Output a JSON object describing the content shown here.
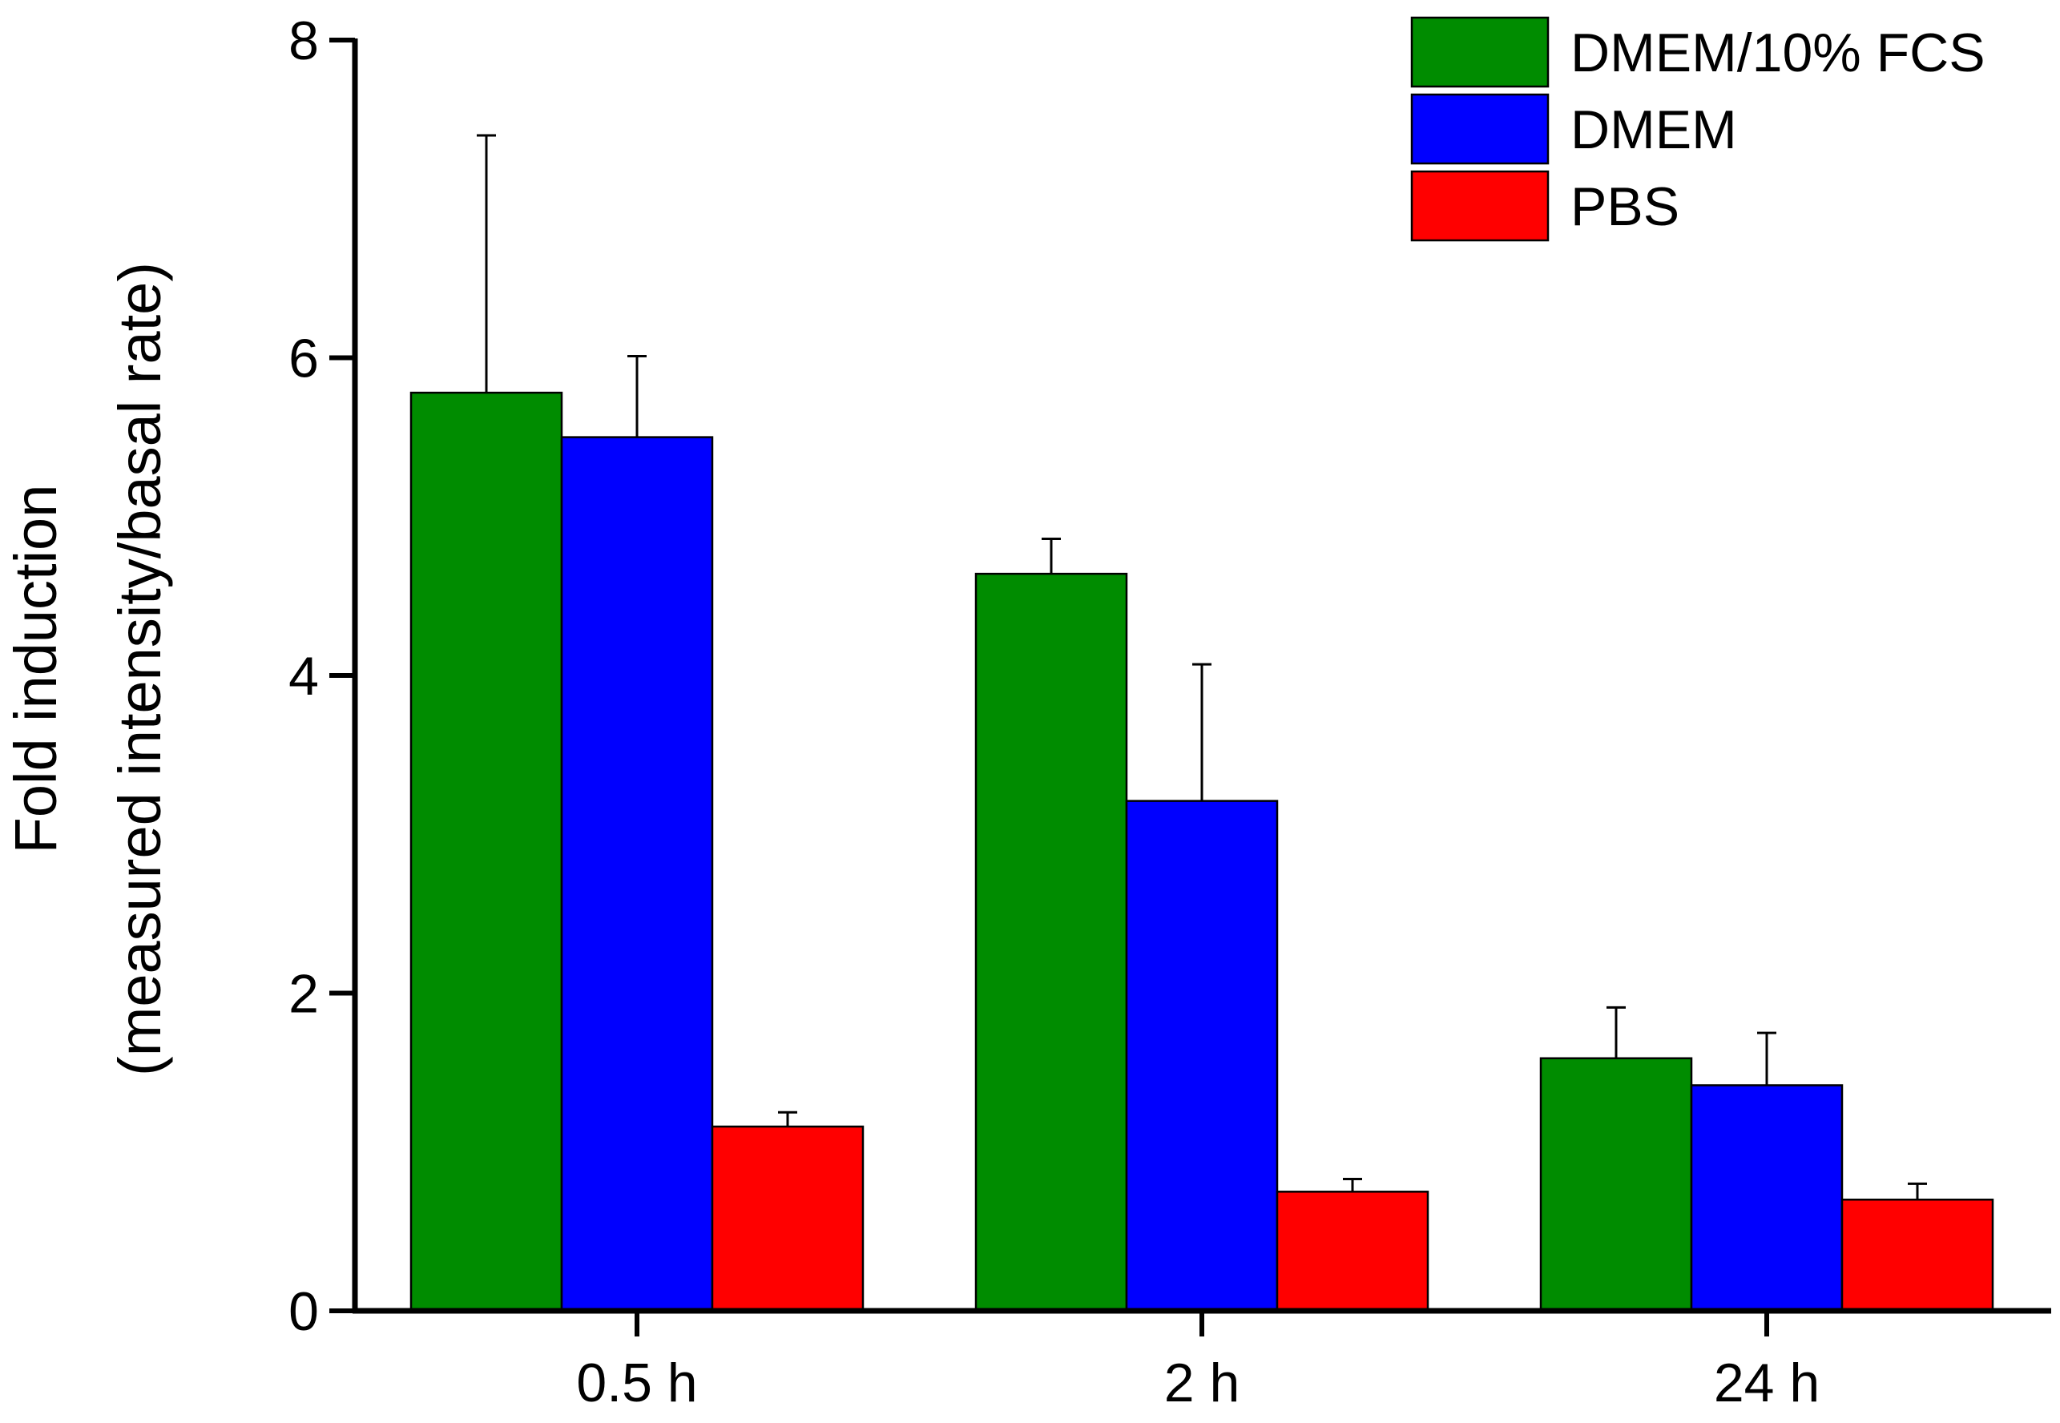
{
  "chart_data": {
    "type": "bar",
    "title": "",
    "xlabel": "",
    "ylabel_line1": "Fold induction",
    "ylabel_line2": "(measured intensity/basal rate)",
    "ylim": [
      0,
      8
    ],
    "yticks": [
      0,
      2,
      4,
      6,
      8
    ],
    "categories": [
      "0.5 h",
      "2 h",
      "24 h"
    ],
    "series": [
      {
        "name": "DMEM/10% FCS",
        "color": "#008C00",
        "values": [
          5.78,
          4.64,
          1.59
        ],
        "errors": [
          1.62,
          0.22,
          0.32
        ]
      },
      {
        "name": "DMEM",
        "color": "#0000FF",
        "values": [
          5.5,
          3.21,
          1.42
        ],
        "errors": [
          0.51,
          0.86,
          0.33
        ]
      },
      {
        "name": "PBS",
        "color": "#FF0000",
        "values": [
          1.16,
          0.75,
          0.7
        ],
        "errors": [
          0.09,
          0.08,
          0.1
        ]
      }
    ],
    "legend_position": "top-right",
    "grid": false
  }
}
